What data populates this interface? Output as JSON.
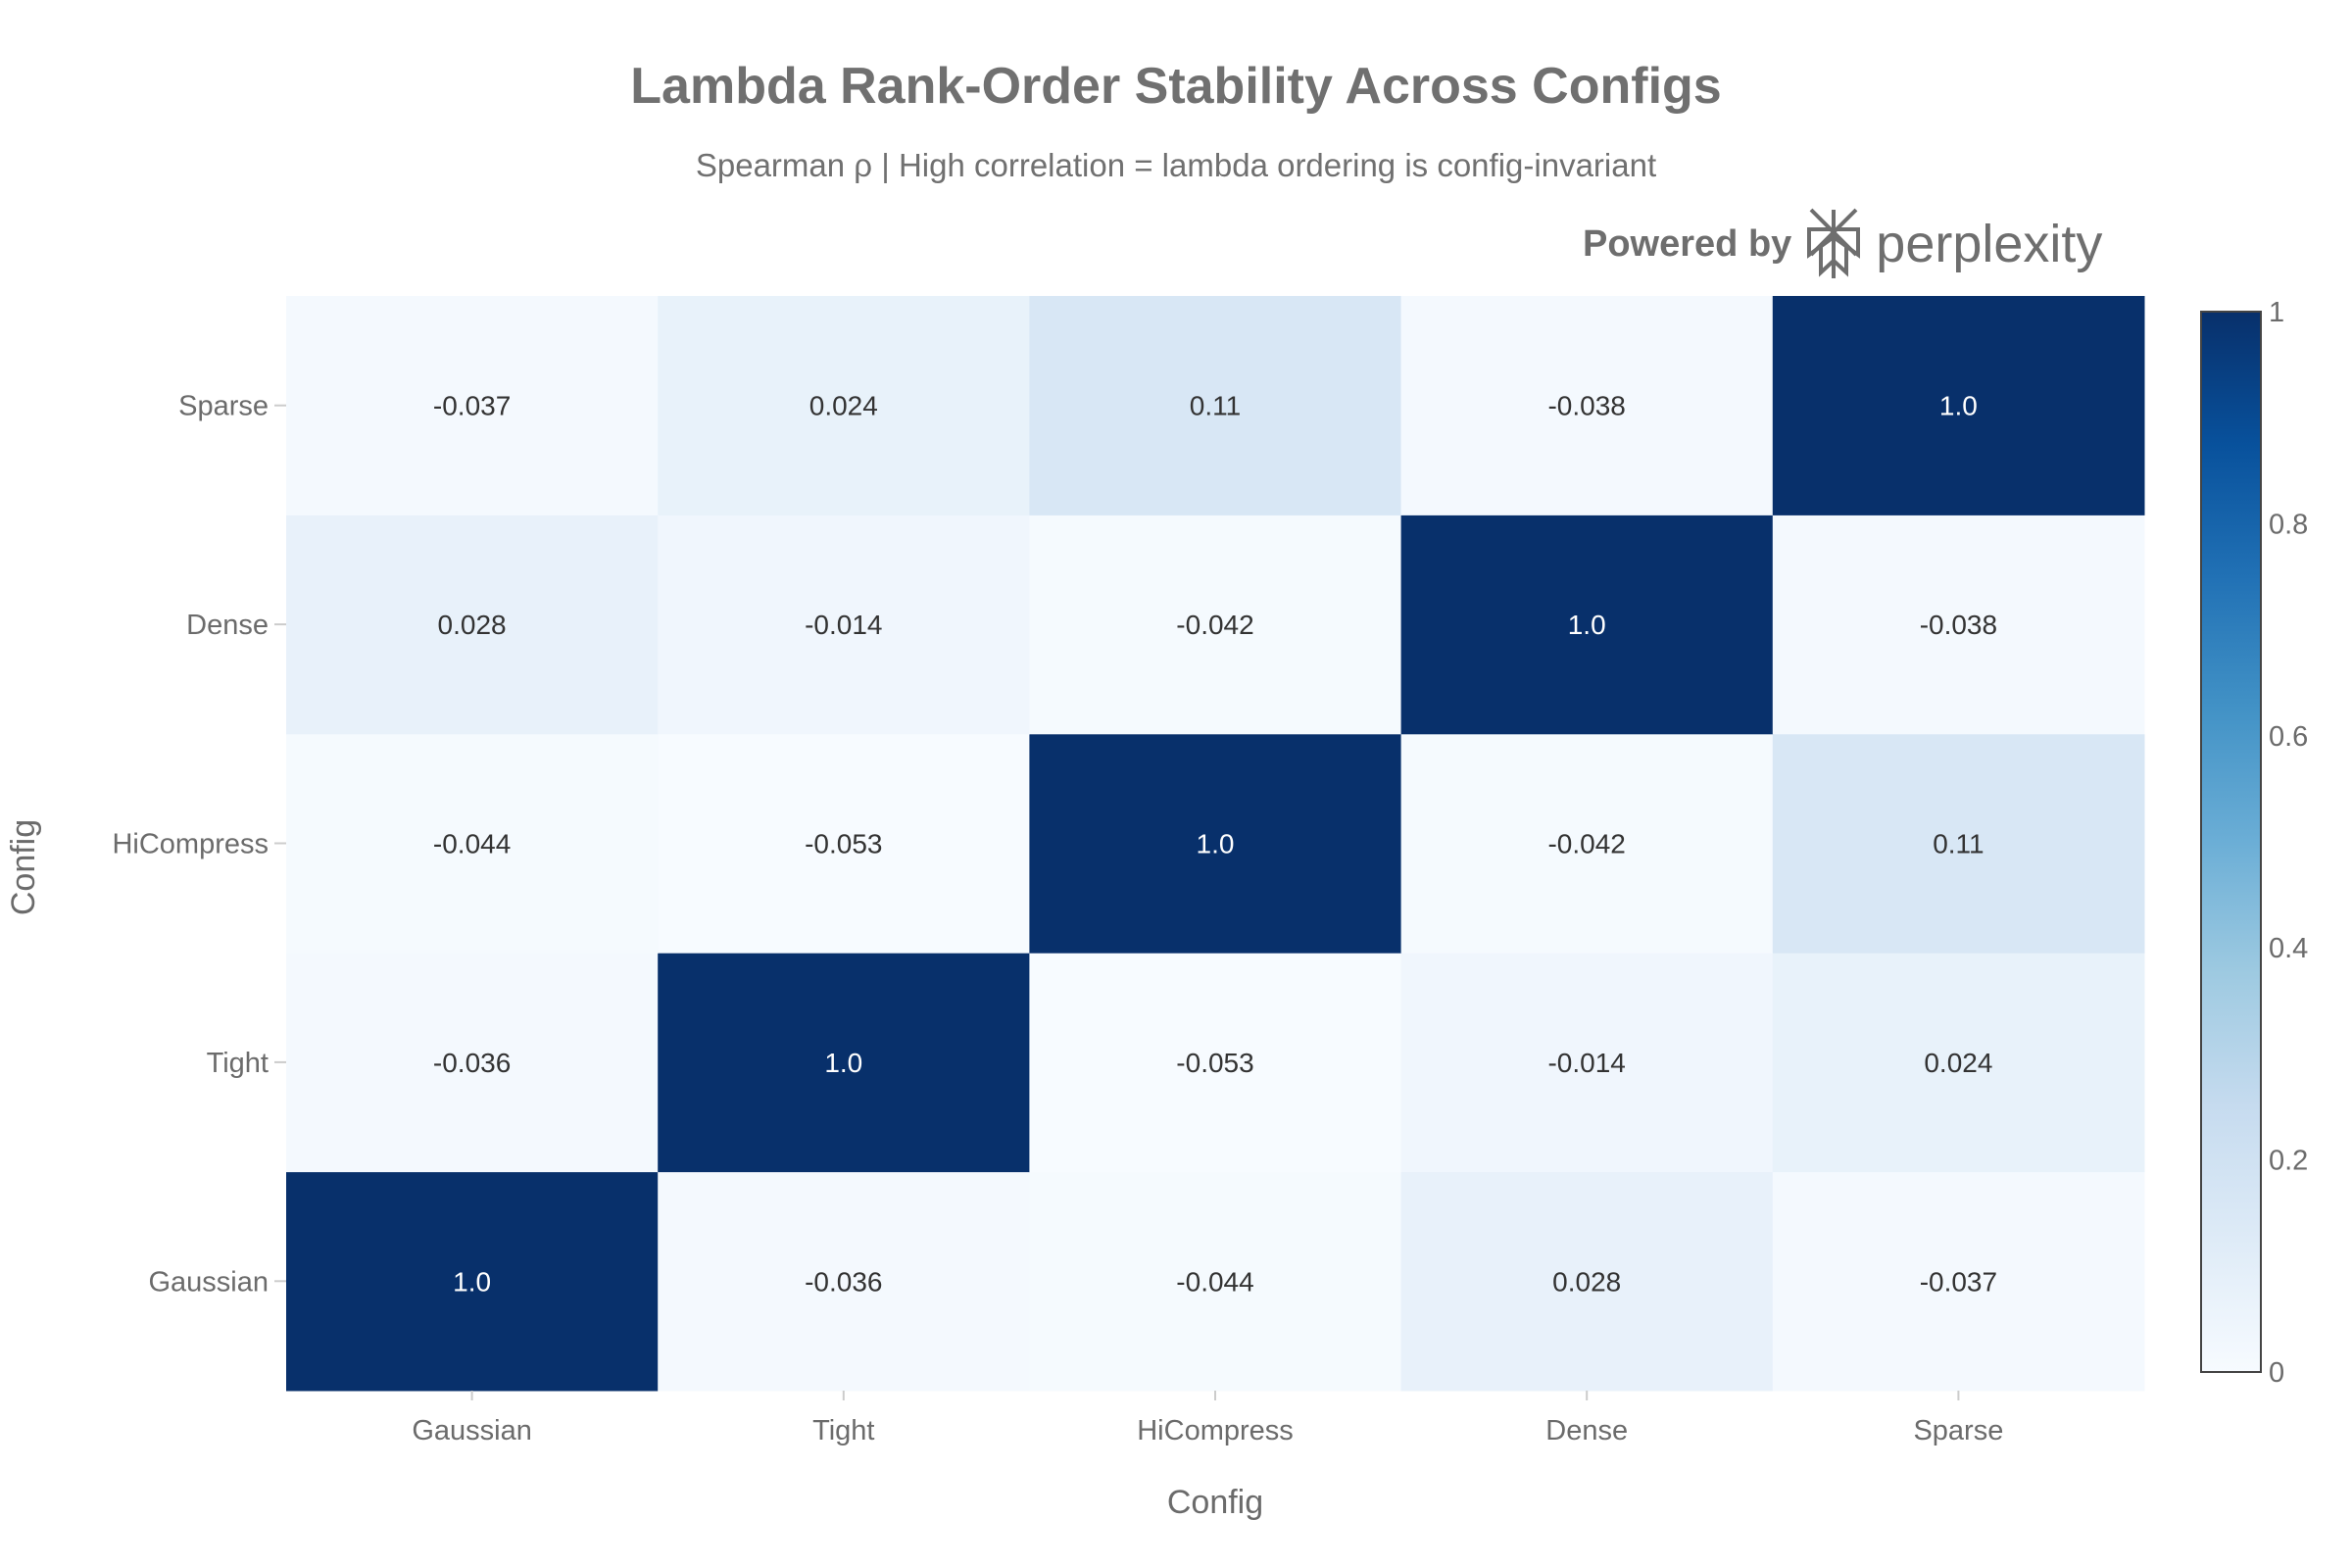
{
  "chart_data": {
    "type": "heatmap",
    "title": "Lambda Rank-Order Stability Across Configs",
    "subtitle": "Spearman ρ | High correlation = lambda ordering is config-invariant",
    "xlabel": "Config",
    "ylabel": "Config",
    "x_categories": [
      "Gaussian",
      "Tight",
      "HiCompress",
      "Dense",
      "Sparse"
    ],
    "y_categories": [
      "Gaussian",
      "Tight",
      "HiCompress",
      "Dense",
      "Sparse"
    ],
    "values": [
      [
        1.0,
        -0.036,
        -0.044,
        0.028,
        -0.037
      ],
      [
        -0.036,
        1.0,
        -0.053,
        -0.014,
        0.024
      ],
      [
        -0.044,
        -0.053,
        1.0,
        -0.042,
        0.11
      ],
      [
        0.028,
        -0.014,
        -0.042,
        1.0,
        -0.038
      ],
      [
        -0.037,
        0.024,
        0.11,
        -0.038,
        1.0
      ]
    ],
    "text": [
      [
        "1.0",
        "-0.036",
        "-0.044",
        "0.028",
        "-0.037"
      ],
      [
        "-0.036",
        "1.0",
        "-0.053",
        "-0.014",
        "0.024"
      ],
      [
        "-0.044",
        "-0.053",
        "1.0",
        "-0.042",
        "0.11"
      ],
      [
        "0.028",
        "-0.014",
        "-0.042",
        "1.0",
        "-0.038"
      ],
      [
        "-0.037",
        "0.024",
        "0.11",
        "-0.038",
        "1.0"
      ]
    ],
    "colorscale": "Blues",
    "zlim": [
      0,
      1
    ],
    "colorbar": {
      "ticks": [
        0,
        0.2,
        0.4,
        0.6,
        0.8,
        1
      ],
      "tick_labels": [
        "0",
        "0.2",
        "0.4",
        "0.6",
        "0.8",
        "1"
      ],
      "placement": "right"
    }
  },
  "watermark": {
    "prefix": "Powered by",
    "brand": "perplexity"
  }
}
